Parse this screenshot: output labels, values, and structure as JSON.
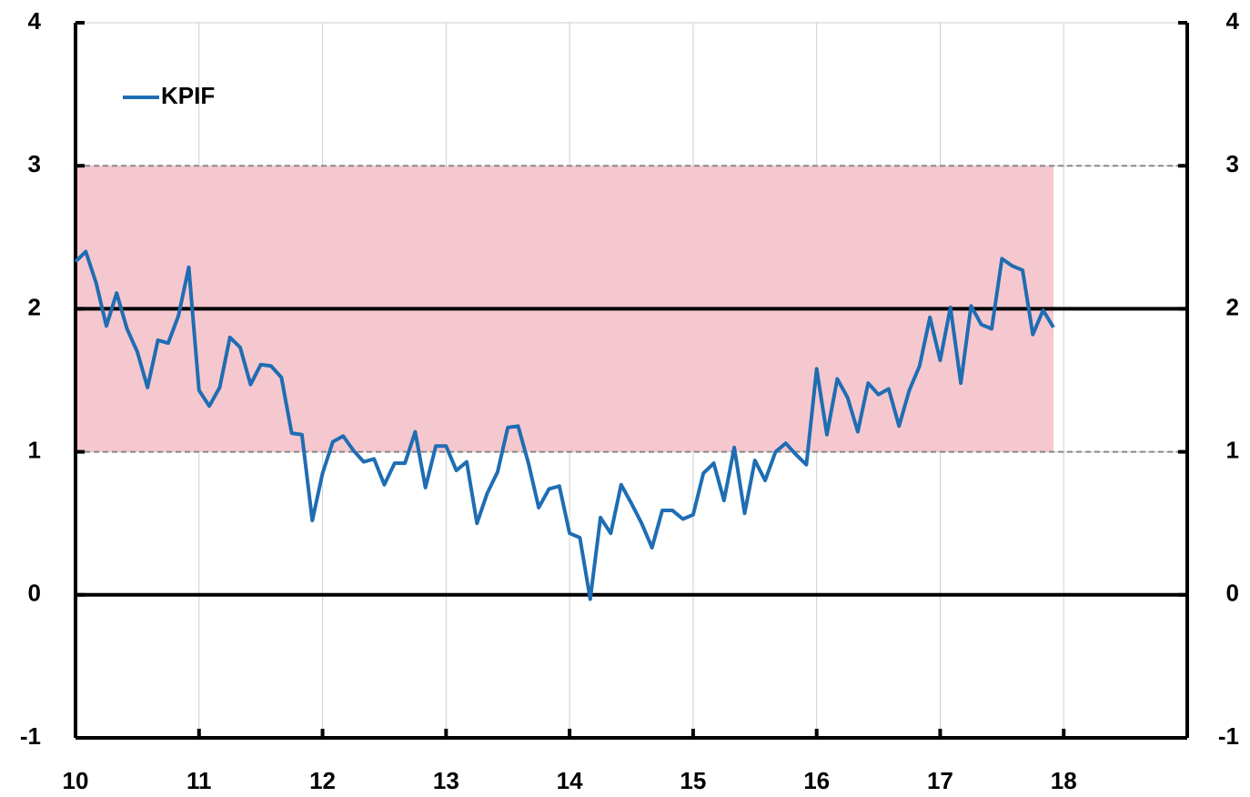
{
  "chart_data": {
    "type": "line",
    "x": [
      10,
      10.083,
      10.167,
      10.25,
      10.333,
      10.417,
      10.5,
      10.583,
      10.667,
      10.75,
      10.833,
      10.917,
      11,
      11.083,
      11.167,
      11.25,
      11.333,
      11.417,
      11.5,
      11.583,
      11.667,
      11.75,
      11.833,
      11.917,
      12,
      12.083,
      12.167,
      12.25,
      12.333,
      12.417,
      12.5,
      12.583,
      12.667,
      12.75,
      12.833,
      12.917,
      13,
      13.083,
      13.167,
      13.25,
      13.333,
      13.417,
      13.5,
      13.583,
      13.667,
      13.75,
      13.833,
      13.917,
      14,
      14.083,
      14.167,
      14.25,
      14.333,
      14.417,
      14.5,
      14.583,
      14.667,
      14.75,
      14.833,
      14.917,
      15,
      15.083,
      15.167,
      15.25,
      15.333,
      15.417,
      15.5,
      15.583,
      15.667,
      15.75,
      15.833,
      15.917,
      16,
      16.083,
      16.167,
      16.25,
      16.333,
      16.417,
      16.5,
      16.583,
      16.667,
      16.75,
      16.833,
      16.917,
      17,
      17.083,
      17.167,
      17.25,
      17.333,
      17.417,
      17.5,
      17.583,
      17.667,
      17.75,
      17.833,
      17.917
    ],
    "series": [
      {
        "name": "KPIF",
        "color": "#1f6db3",
        "values": [
          2.33,
          2.4,
          2.18,
          1.88,
          2.11,
          1.86,
          1.7,
          1.45,
          1.78,
          1.76,
          1.95,
          2.29,
          1.43,
          1.32,
          1.45,
          1.8,
          1.73,
          1.47,
          1.61,
          1.6,
          1.52,
          1.13,
          1.12,
          0.52,
          0.85,
          1.07,
          1.11,
          1.01,
          0.93,
          0.95,
          0.77,
          0.92,
          0.92,
          1.14,
          0.75,
          1.04,
          1.04,
          0.87,
          0.93,
          0.5,
          0.71,
          0.86,
          1.17,
          1.18,
          0.92,
          0.61,
          0.74,
          0.76,
          0.43,
          0.4,
          -0.03,
          0.54,
          0.43,
          0.77,
          0.64,
          0.5,
          0.33,
          0.59,
          0.59,
          0.53,
          0.56,
          0.85,
          0.92,
          0.66,
          1.03,
          0.57,
          0.94,
          0.8,
          1.0,
          1.06,
          0.98,
          0.91,
          1.58,
          1.12,
          1.51,
          1.38,
          1.14,
          1.48,
          1.4,
          1.44,
          1.18,
          1.43,
          1.6,
          1.94,
          1.64,
          2.01,
          1.48,
          2.02,
          1.89,
          1.86,
          2.35,
          2.3,
          2.27,
          1.82,
          1.99,
          1.87
        ]
      }
    ],
    "xlim": [
      10,
      19
    ],
    "xticks": [
      10,
      11,
      12,
      13,
      14,
      15,
      16,
      17,
      18
    ],
    "ylim": [
      -1,
      4
    ],
    "yticks": [
      -1,
      0,
      1,
      2,
      3,
      4
    ],
    "y2lim": [
      -1,
      4
    ],
    "y2ticks": [
      -1,
      0,
      1,
      2,
      3,
      4
    ],
    "target_band": [
      1,
      3
    ],
    "reference_lines": [
      0,
      2
    ],
    "grid": true,
    "legend": "upper left"
  }
}
